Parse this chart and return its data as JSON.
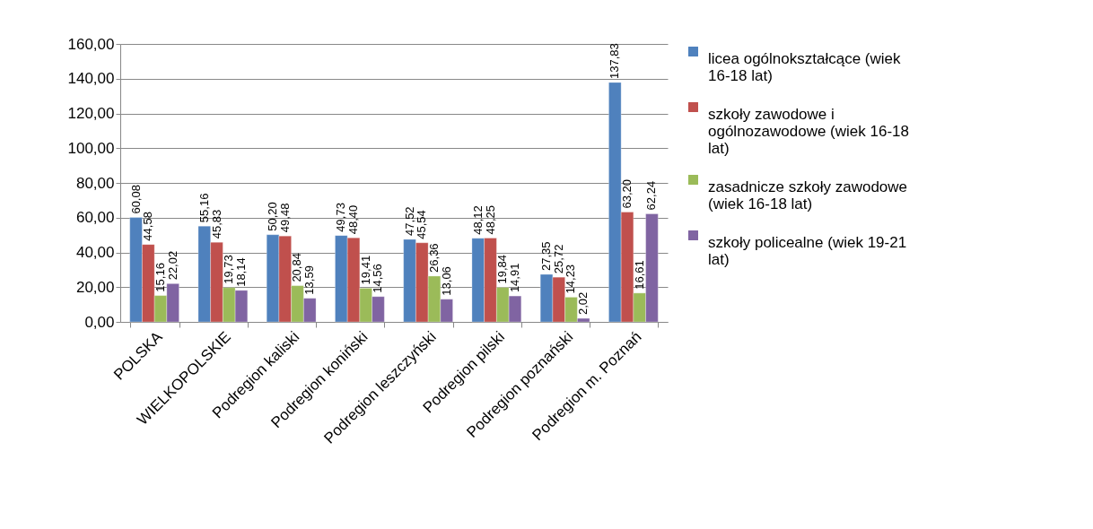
{
  "chart_data": {
    "type": "bar",
    "categories": [
      "POLSKA",
      "WIELKOPOLSKIE",
      "Podregion kaliski",
      "Podregion  koniński",
      "Podregion  leszczyński",
      "Podregion  pilski",
      "Podregion  poznański",
      "Podregion  m. Poznań"
    ],
    "series": [
      {
        "name": "licea ogólnokształcące (wiek 16-18 lat)",
        "color": "#4f81bd",
        "values": [
          60.08,
          55.16,
          50.2,
          49.73,
          47.52,
          48.12,
          27.35,
          137.83
        ],
        "value_labels": [
          "60,08",
          "55,16",
          "50,20",
          "49,73",
          "47,52",
          "48,12",
          "27,35",
          "137,83"
        ]
      },
      {
        "name": "szkoły zawodowe i ogólnozawodowe (wiek 16-18 lat)",
        "color": "#c0504d",
        "values": [
          44.58,
          45.83,
          49.48,
          48.4,
          45.54,
          48.25,
          25.72,
          63.2
        ],
        "value_labels": [
          "44,58",
          "45,83",
          "49,48",
          "48,40",
          "45,54",
          "48,25",
          "25,72",
          "63,20"
        ]
      },
      {
        "name": "zasadnicze szkoły zawodowe (wiek 16-18 lat)",
        "color": "#9bbb59",
        "values": [
          15.16,
          19.73,
          20.84,
          19.41,
          26.36,
          19.84,
          14.23,
          16.61
        ],
        "value_labels": [
          "15,16",
          "19,73",
          "20,84",
          "19,41",
          "26,36",
          "19,84",
          "14,23",
          "16,61"
        ]
      },
      {
        "name": "szkoły policealne (wiek 19-21 lat)",
        "color": "#8064a2",
        "values": [
          22.02,
          18.14,
          13.59,
          14.56,
          13.06,
          14.91,
          2.02,
          62.24
        ],
        "value_labels": [
          "22,02",
          "18,14",
          "13,59",
          "14,56",
          "13,06",
          "14,91",
          "2,02",
          "62,24"
        ]
      }
    ],
    "ylim": [
      0,
      160
    ],
    "yticks": [
      {
        "value": 0,
        "label": "0,00"
      },
      {
        "value": 20,
        "label": "20,00"
      },
      {
        "value": 40,
        "label": "40,00"
      },
      {
        "value": 60,
        "label": "60,00"
      },
      {
        "value": 80,
        "label": "80,00"
      },
      {
        "value": 100,
        "label": "100,00"
      },
      {
        "value": 120,
        "label": "120,00"
      },
      {
        "value": 140,
        "label": "140,00"
      },
      {
        "value": 160,
        "label": "160,00"
      }
    ],
    "grid": "y",
    "legend": "right"
  }
}
